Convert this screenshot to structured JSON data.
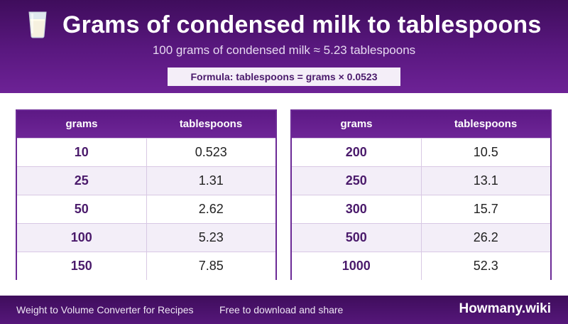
{
  "header": {
    "icon": "glass-of-milk-icon",
    "title": "Grams of condensed milk to tablespoons",
    "subtitle": "100 grams of condensed milk ≈ 5.23 tablespoons",
    "formula": "Formula: tablespoons = grams × 0.0523"
  },
  "tables": [
    {
      "columns": [
        "grams",
        "tablespoons"
      ],
      "rows": [
        {
          "grams": "10",
          "tablespoons": "0.523"
        },
        {
          "grams": "25",
          "tablespoons": "1.31"
        },
        {
          "grams": "50",
          "tablespoons": "2.62"
        },
        {
          "grams": "100",
          "tablespoons": "5.23"
        },
        {
          "grams": "150",
          "tablespoons": "7.85"
        }
      ]
    },
    {
      "columns": [
        "grams",
        "tablespoons"
      ],
      "rows": [
        {
          "grams": "200",
          "tablespoons": "10.5"
        },
        {
          "grams": "250",
          "tablespoons": "13.1"
        },
        {
          "grams": "300",
          "tablespoons": "15.7"
        },
        {
          "grams": "500",
          "tablespoons": "26.2"
        },
        {
          "grams": "1000",
          "tablespoons": "52.3"
        }
      ]
    }
  ],
  "footer": {
    "left_text": "Weight to Volume Converter for Recipes",
    "middle_text": "Free to download and share",
    "brand": "Howmany.wiki"
  },
  "colors": {
    "header_purple": "#4b1470",
    "accent_purple": "#6c2a96",
    "row_alt": "#f3eef8"
  }
}
